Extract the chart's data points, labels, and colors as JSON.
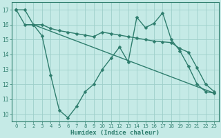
{
  "line1_x": [
    0,
    1,
    2,
    3,
    4,
    5,
    6,
    7,
    8,
    9,
    10,
    11,
    12,
    13,
    14,
    15,
    16,
    17,
    18,
    19,
    20,
    21,
    22,
    23
  ],
  "line1_y": [
    17.0,
    17.0,
    16.0,
    16.0,
    15.75,
    15.6,
    15.5,
    15.4,
    15.3,
    15.2,
    15.5,
    15.4,
    15.3,
    15.2,
    15.1,
    15.0,
    14.9,
    14.85,
    14.8,
    14.4,
    14.15,
    13.1,
    12.0,
    11.5
  ],
  "line2_x": [
    0,
    1,
    2,
    3,
    4,
    5,
    6,
    7,
    8,
    9,
    10,
    11,
    12,
    13,
    14,
    15,
    16,
    17,
    18,
    19,
    20,
    21,
    22,
    23
  ],
  "line2_y": [
    17.0,
    16.0,
    16.0,
    15.25,
    12.6,
    10.25,
    9.75,
    10.5,
    11.5,
    12.0,
    13.0,
    13.75,
    14.5,
    13.5,
    16.5,
    15.8,
    16.1,
    16.8,
    15.0,
    14.25,
    13.2,
    12.0,
    11.5,
    11.4
  ],
  "line3_x": [
    1,
    2,
    23
  ],
  "line3_y": [
    16.0,
    16.0,
    11.4
  ],
  "color": "#2e7d6d",
  "bg_color": "#c5eae6",
  "grid_color": "#9ecfca",
  "xlabel": "Humidex (Indice chaleur)",
  "xlim": [
    -0.5,
    23.5
  ],
  "ylim": [
    9.5,
    17.5
  ],
  "yticks": [
    10,
    11,
    12,
    13,
    14,
    15,
    16,
    17
  ],
  "xticks": [
    0,
    1,
    2,
    3,
    4,
    5,
    6,
    7,
    8,
    9,
    10,
    11,
    12,
    13,
    14,
    15,
    16,
    17,
    18,
    19,
    20,
    21,
    22,
    23
  ],
  "markersize": 2.5,
  "linewidth": 1.0
}
